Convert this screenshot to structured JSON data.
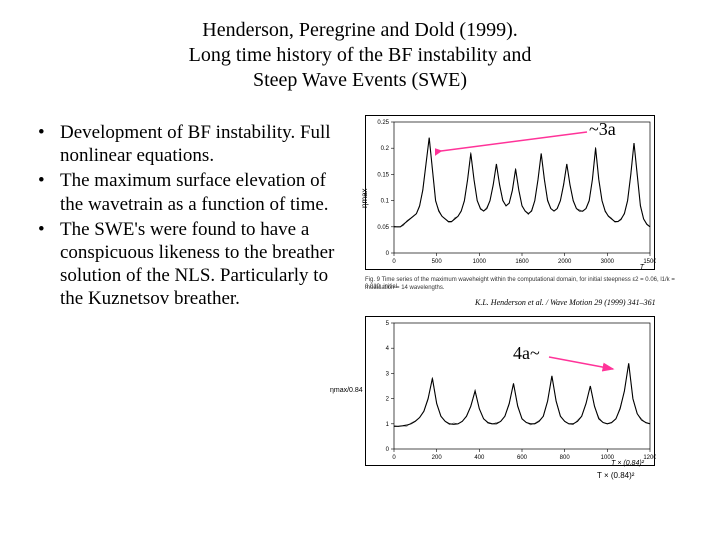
{
  "title": {
    "line1": "Henderson, Peregrine and Dold (1999).",
    "line2": "Long time history of the BF instability and",
    "line3": "Steep Wave Events (SWE)"
  },
  "bullets": [
    "Development of BF instability. Full nonlinear equations.",
    "The maximum surface elevation of the wavetrain as a function of time.",
    "The SWE's were found to have a conspicuous likeness to the breather solution of the NLS. Particularly to the Kuznetsov breather."
  ],
  "top_chart": {
    "type": "line",
    "annotation_label": "~3a",
    "annotation_color": "#c00000",
    "arrow_color": "#ff3399",
    "ylabel": "ηmax",
    "xlabel": "T",
    "ylim": [
      0,
      0.25
    ],
    "yticks": [
      "0",
      "0.05",
      "0.1",
      "0.15",
      "0.2",
      "0.25"
    ],
    "xlim": [
      0,
      1600
    ],
    "xticks": [
      "0",
      "500",
      "1000",
      "1600",
      "2000",
      "3000",
      "1500"
    ],
    "line_color": "#000000",
    "background_color": "#ffffff",
    "series": [
      [
        0,
        0.05
      ],
      [
        20,
        0.05
      ],
      [
        40,
        0.05
      ],
      [
        60,
        0.055
      ],
      [
        80,
        0.06
      ],
      [
        100,
        0.065
      ],
      [
        120,
        0.07
      ],
      [
        140,
        0.075
      ],
      [
        160,
        0.09
      ],
      [
        180,
        0.12
      ],
      [
        200,
        0.17
      ],
      [
        220,
        0.22
      ],
      [
        240,
        0.16
      ],
      [
        260,
        0.1
      ],
      [
        280,
        0.08
      ],
      [
        300,
        0.07
      ],
      [
        320,
        0.065
      ],
      [
        340,
        0.06
      ],
      [
        360,
        0.06
      ],
      [
        380,
        0.065
      ],
      [
        400,
        0.07
      ],
      [
        420,
        0.08
      ],
      [
        440,
        0.1
      ],
      [
        460,
        0.14
      ],
      [
        480,
        0.19
      ],
      [
        500,
        0.14
      ],
      [
        520,
        0.1
      ],
      [
        540,
        0.085
      ],
      [
        560,
        0.08
      ],
      [
        580,
        0.085
      ],
      [
        600,
        0.1
      ],
      [
        620,
        0.13
      ],
      [
        640,
        0.17
      ],
      [
        660,
        0.13
      ],
      [
        680,
        0.1
      ],
      [
        700,
        0.09
      ],
      [
        720,
        0.095
      ],
      [
        740,
        0.12
      ],
      [
        760,
        0.16
      ],
      [
        780,
        0.12
      ],
      [
        800,
        0.09
      ],
      [
        820,
        0.08
      ],
      [
        840,
        0.075
      ],
      [
        860,
        0.08
      ],
      [
        880,
        0.1
      ],
      [
        900,
        0.14
      ],
      [
        920,
        0.19
      ],
      [
        940,
        0.14
      ],
      [
        960,
        0.1
      ],
      [
        980,
        0.085
      ],
      [
        1000,
        0.08
      ],
      [
        1020,
        0.085
      ],
      [
        1040,
        0.1
      ],
      [
        1060,
        0.13
      ],
      [
        1080,
        0.17
      ],
      [
        1100,
        0.13
      ],
      [
        1120,
        0.1
      ],
      [
        1140,
        0.085
      ],
      [
        1160,
        0.08
      ],
      [
        1180,
        0.08
      ],
      [
        1200,
        0.085
      ],
      [
        1220,
        0.1
      ],
      [
        1240,
        0.14
      ],
      [
        1260,
        0.2
      ],
      [
        1280,
        0.14
      ],
      [
        1300,
        0.1
      ],
      [
        1320,
        0.08
      ],
      [
        1340,
        0.07
      ],
      [
        1360,
        0.065
      ],
      [
        1380,
        0.06
      ],
      [
        1400,
        0.06
      ],
      [
        1420,
        0.065
      ],
      [
        1440,
        0.075
      ],
      [
        1460,
        0.1
      ],
      [
        1480,
        0.15
      ],
      [
        1500,
        0.21
      ],
      [
        1520,
        0.15
      ],
      [
        1540,
        0.09
      ],
      [
        1560,
        0.065
      ],
      [
        1580,
        0.055
      ],
      [
        1600,
        0.05
      ]
    ],
    "caption_line1": "Fig. 9  Time series of the maximum waveheight within the computational domain, for initial steepness  ε2 = 0.06, l1/k = 0.019, initial",
    "caption_line2": "modulation = 14 wavelengths.",
    "journal": "K.L. Henderson et al. / Wave Motion 29 (1999) 341–361"
  },
  "bottom_chart": {
    "type": "line",
    "annotation_label": "4a~",
    "annotation_color": "#c00000",
    "arrow_color": "#ff3399",
    "ylabel": "ηmax/0.84",
    "xlabel": "T × (0.84)²",
    "ylim": [
      0,
      5
    ],
    "yticks": [
      "0",
      "1",
      "2",
      "3",
      "4",
      "5"
    ],
    "xlim": [
      0,
      1200
    ],
    "xticks": [
      "0",
      "200",
      "400",
      "600",
      "800",
      "1000",
      "1200"
    ],
    "line_color": "#000000",
    "background_color": "#ffffff",
    "series": [
      [
        0,
        0.9
      ],
      [
        20,
        0.9
      ],
      [
        40,
        0.92
      ],
      [
        60,
        0.95
      ],
      [
        80,
        1.0
      ],
      [
        100,
        1.1
      ],
      [
        120,
        1.25
      ],
      [
        140,
        1.5
      ],
      [
        160,
        2.0
      ],
      [
        180,
        2.8
      ],
      [
        200,
        1.8
      ],
      [
        220,
        1.3
      ],
      [
        240,
        1.1
      ],
      [
        260,
        1.0
      ],
      [
        280,
        0.98
      ],
      [
        300,
        1.0
      ],
      [
        320,
        1.1
      ],
      [
        340,
        1.3
      ],
      [
        360,
        1.7
      ],
      [
        380,
        2.3
      ],
      [
        400,
        1.6
      ],
      [
        420,
        1.2
      ],
      [
        440,
        1.05
      ],
      [
        460,
        1.0
      ],
      [
        480,
        1.0
      ],
      [
        500,
        1.1
      ],
      [
        520,
        1.3
      ],
      [
        540,
        1.8
      ],
      [
        560,
        2.6
      ],
      [
        580,
        1.7
      ],
      [
        600,
        1.2
      ],
      [
        620,
        1.05
      ],
      [
        640,
        1.0
      ],
      [
        660,
        1.0
      ],
      [
        680,
        1.1
      ],
      [
        700,
        1.3
      ],
      [
        720,
        1.9
      ],
      [
        740,
        2.9
      ],
      [
        760,
        1.9
      ],
      [
        780,
        1.3
      ],
      [
        800,
        1.1
      ],
      [
        820,
        1.0
      ],
      [
        840,
        1.0
      ],
      [
        860,
        1.1
      ],
      [
        880,
        1.3
      ],
      [
        900,
        1.8
      ],
      [
        920,
        2.5
      ],
      [
        940,
        1.7
      ],
      [
        960,
        1.2
      ],
      [
        980,
        1.05
      ],
      [
        1000,
        1.0
      ],
      [
        1020,
        1.05
      ],
      [
        1040,
        1.2
      ],
      [
        1060,
        1.6
      ],
      [
        1080,
        2.3
      ],
      [
        1100,
        3.4
      ],
      [
        1120,
        2.0
      ],
      [
        1140,
        1.4
      ],
      [
        1160,
        1.15
      ],
      [
        1180,
        1.05
      ],
      [
        1200,
        1.0
      ]
    ]
  }
}
